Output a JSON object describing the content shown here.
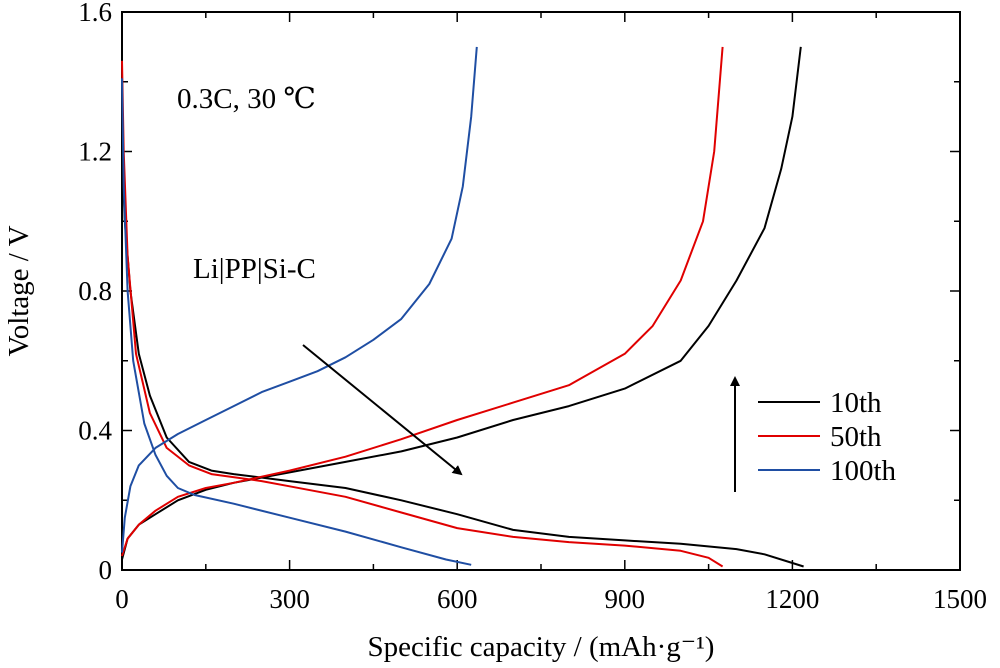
{
  "chart_data": {
    "type": "line",
    "xlabel": "Specific capacity / (mAh·g⁻¹)",
    "ylabel": "Voltage / V",
    "xlim": [
      0,
      1500
    ],
    "ylim": [
      0,
      1.6
    ],
    "xticks": [
      0,
      300,
      600,
      900,
      1200,
      1500
    ],
    "xtick_labels": [
      "0",
      "300",
      "600",
      "900",
      "1200",
      "1500"
    ],
    "yticks": [
      0,
      0.4,
      0.8,
      1.2,
      1.6
    ],
    "ytick_labels": [
      "0",
      "0.4",
      "0.8",
      "1.2",
      "1.6"
    ],
    "grid": false,
    "legend_position": "bottom-right",
    "annotations": {
      "condition": "0.3C, 30 ℃",
      "cell": "Li|PP|Si-C"
    },
    "series": [
      {
        "name": "10th",
        "color": "#000000",
        "discharge": [
          [
            0,
            1.2
          ],
          [
            5,
            1.0
          ],
          [
            15,
            0.8
          ],
          [
            30,
            0.62
          ],
          [
            50,
            0.5
          ],
          [
            80,
            0.38
          ],
          [
            120,
            0.31
          ],
          [
            160,
            0.285
          ],
          [
            200,
            0.275
          ],
          [
            300,
            0.255
          ],
          [
            400,
            0.235
          ],
          [
            500,
            0.2
          ],
          [
            600,
            0.16
          ],
          [
            700,
            0.115
          ],
          [
            800,
            0.095
          ],
          [
            900,
            0.085
          ],
          [
            1000,
            0.075
          ],
          [
            1100,
            0.06
          ],
          [
            1150,
            0.045
          ],
          [
            1200,
            0.02
          ],
          [
            1220,
            0.01
          ]
        ],
        "charge": [
          [
            0,
            0.03
          ],
          [
            10,
            0.09
          ],
          [
            30,
            0.13
          ],
          [
            60,
            0.16
          ],
          [
            100,
            0.2
          ],
          [
            150,
            0.23
          ],
          [
            200,
            0.25
          ],
          [
            300,
            0.28
          ],
          [
            400,
            0.31
          ],
          [
            500,
            0.34
          ],
          [
            600,
            0.38
          ],
          [
            700,
            0.43
          ],
          [
            800,
            0.47
          ],
          [
            900,
            0.52
          ],
          [
            1000,
            0.6
          ],
          [
            1050,
            0.7
          ],
          [
            1100,
            0.83
          ],
          [
            1150,
            0.98
          ],
          [
            1180,
            1.15
          ],
          [
            1200,
            1.3
          ],
          [
            1215,
            1.5
          ]
        ]
      },
      {
        "name": "50th",
        "color": "#e00000",
        "discharge": [
          [
            0,
            1.46
          ],
          [
            3,
            1.2
          ],
          [
            10,
            0.9
          ],
          [
            25,
            0.62
          ],
          [
            50,
            0.45
          ],
          [
            80,
            0.35
          ],
          [
            120,
            0.3
          ],
          [
            160,
            0.275
          ],
          [
            250,
            0.255
          ],
          [
            300,
            0.24
          ],
          [
            400,
            0.21
          ],
          [
            500,
            0.165
          ],
          [
            600,
            0.12
          ],
          [
            700,
            0.095
          ],
          [
            800,
            0.08
          ],
          [
            900,
            0.07
          ],
          [
            1000,
            0.055
          ],
          [
            1050,
            0.035
          ],
          [
            1075,
            0.01
          ]
        ],
        "charge": [
          [
            0,
            0.04
          ],
          [
            10,
            0.09
          ],
          [
            30,
            0.13
          ],
          [
            60,
            0.17
          ],
          [
            100,
            0.21
          ],
          [
            150,
            0.235
          ],
          [
            200,
            0.25
          ],
          [
            300,
            0.285
          ],
          [
            400,
            0.325
          ],
          [
            500,
            0.375
          ],
          [
            600,
            0.43
          ],
          [
            700,
            0.48
          ],
          [
            800,
            0.53
          ],
          [
            900,
            0.62
          ],
          [
            950,
            0.7
          ],
          [
            1000,
            0.83
          ],
          [
            1040,
            1.0
          ],
          [
            1060,
            1.2
          ],
          [
            1075,
            1.5
          ]
        ]
      },
      {
        "name": "100th",
        "color": "#1f4ea3",
        "discharge": [
          [
            0,
            1.41
          ],
          [
            3,
            1.1
          ],
          [
            10,
            0.8
          ],
          [
            20,
            0.6
          ],
          [
            40,
            0.42
          ],
          [
            60,
            0.33
          ],
          [
            80,
            0.27
          ],
          [
            100,
            0.235
          ],
          [
            130,
            0.215
          ],
          [
            200,
            0.19
          ],
          [
            300,
            0.15
          ],
          [
            400,
            0.11
          ],
          [
            500,
            0.065
          ],
          [
            580,
            0.03
          ],
          [
            625,
            0.015
          ]
        ],
        "charge": [
          [
            0,
            0.05
          ],
          [
            5,
            0.15
          ],
          [
            15,
            0.24
          ],
          [
            30,
            0.3
          ],
          [
            60,
            0.35
          ],
          [
            100,
            0.39
          ],
          [
            150,
            0.43
          ],
          [
            200,
            0.47
          ],
          [
            250,
            0.51
          ],
          [
            300,
            0.54
          ],
          [
            350,
            0.57
          ],
          [
            400,
            0.61
          ],
          [
            450,
            0.66
          ],
          [
            500,
            0.72
          ],
          [
            550,
            0.82
          ],
          [
            590,
            0.95
          ],
          [
            610,
            1.1
          ],
          [
            625,
            1.3
          ],
          [
            635,
            1.5
          ]
        ]
      }
    ]
  }
}
